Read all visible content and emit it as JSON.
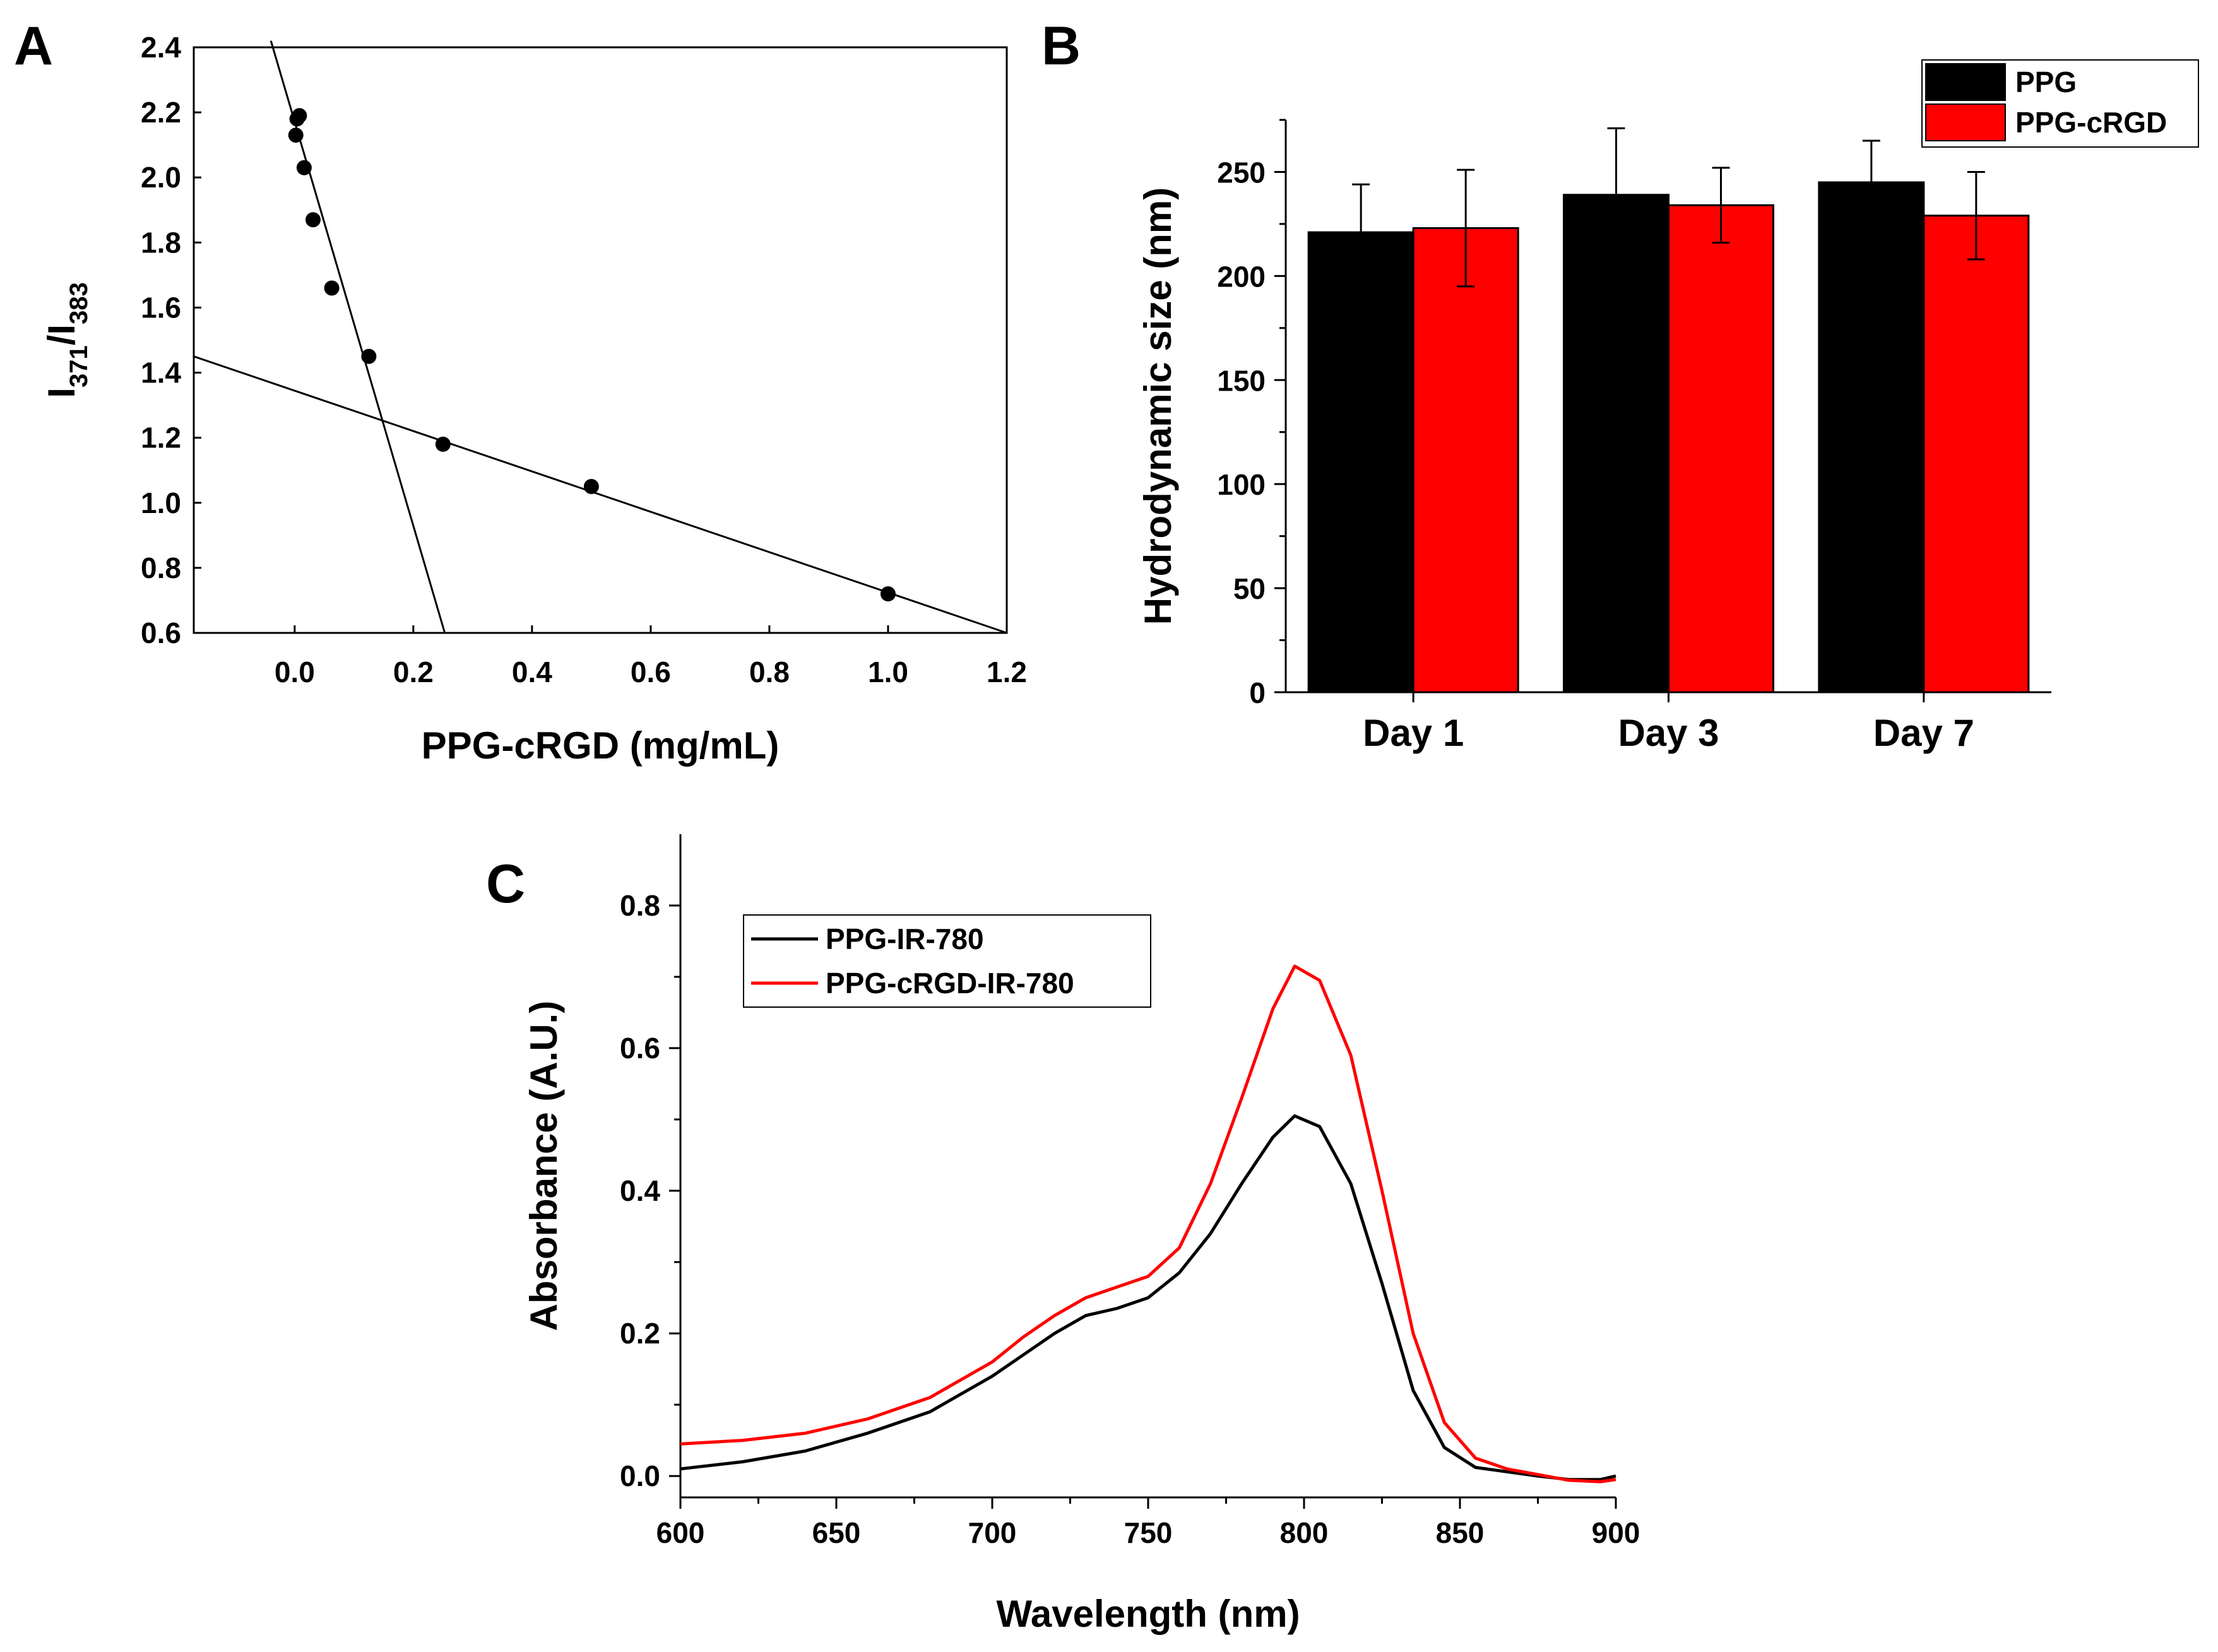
{
  "figure": {
    "panel_labels": [
      "A",
      "B",
      "C"
    ]
  },
  "chart_data": [
    {
      "panel": "A",
      "type": "scatter",
      "xlabel": "PPG-cRGD (mg/mL)",
      "ylabel": {
        "base": "I",
        "sub1": "371",
        "sep": "/I",
        "sub2": "383"
      },
      "xlim": [
        -0.17,
        1.2
      ],
      "ylim": [
        0.6,
        2.4
      ],
      "xticks": [
        "0.0",
        "0.2",
        "0.4",
        "0.6",
        "0.8",
        "1.0",
        "1.2"
      ],
      "xtick_values": [
        0.0,
        0.2,
        0.4,
        0.6,
        0.8,
        1.0,
        1.2
      ],
      "yticks": [
        "0.6",
        "0.8",
        "1.0",
        "1.2",
        "1.4",
        "1.6",
        "1.8",
        "2.0",
        "2.2",
        "2.4"
      ],
      "ytick_values": [
        0.6,
        0.8,
        1.0,
        1.2,
        1.4,
        1.6,
        1.8,
        2.0,
        2.2,
        2.4
      ],
      "points": [
        {
          "x": 0.004,
          "y": 2.18
        },
        {
          "x": 0.008,
          "y": 2.19
        },
        {
          "x": 0.002,
          "y": 2.13
        },
        {
          "x": 0.016,
          "y": 2.03
        },
        {
          "x": 0.031,
          "y": 1.87
        },
        {
          "x": 0.0625,
          "y": 1.66
        },
        {
          "x": 0.125,
          "y": 1.45
        },
        {
          "x": 0.25,
          "y": 1.18
        },
        {
          "x": 0.5,
          "y": 1.05
        },
        {
          "x": 1.0,
          "y": 0.72
        }
      ],
      "fit_lines": [
        {
          "name": "steep",
          "from": [
            -0.04,
            2.42
          ],
          "to": [
            0.253,
            0.6
          ]
        },
        {
          "name": "shallow",
          "from": [
            -0.17,
            1.45
          ],
          "to": [
            1.2,
            0.6
          ]
        }
      ]
    },
    {
      "panel": "B",
      "type": "bar",
      "ylabel": "Hydrodynamic size (nm)",
      "categories": [
        "Day 1",
        "Day 3",
        "Day 7"
      ],
      "series": [
        {
          "name": "PPG",
          "color": "#000000",
          "values": [
            221,
            239,
            245
          ],
          "errors": [
            23,
            32,
            20
          ]
        },
        {
          "name": "PPG-cRGD",
          "color": "#ff0000",
          "values": [
            223,
            234,
            229
          ],
          "errors": [
            28,
            18,
            21
          ]
        }
      ],
      "ylim": [
        0,
        275
      ],
      "yticks": [
        "0",
        "50",
        "100",
        "150",
        "200",
        "250"
      ],
      "ytick_values": [
        0,
        50,
        100,
        150,
        200,
        250
      ],
      "legend": "top-right"
    },
    {
      "panel": "C",
      "type": "line",
      "xlabel": "Wavelength (nm)",
      "ylabel": "Absorbance (A.U.)",
      "xlim": [
        600,
        900
      ],
      "ylim": [
        -0.03,
        0.9
      ],
      "xticks": [
        "600",
        "650",
        "700",
        "750",
        "800",
        "850",
        "900"
      ],
      "xtick_values": [
        600,
        650,
        700,
        750,
        800,
        850,
        900
      ],
      "yticks": [
        "0.0",
        "0.2",
        "0.4",
        "0.6",
        "0.8"
      ],
      "ytick_values": [
        0.0,
        0.2,
        0.4,
        0.6,
        0.8
      ],
      "x": [
        600,
        620,
        640,
        660,
        680,
        700,
        710,
        720,
        730,
        740,
        750,
        760,
        770,
        780,
        790,
        797,
        805,
        815,
        825,
        835,
        845,
        855,
        865,
        875,
        885,
        895,
        900
      ],
      "series": [
        {
          "name": "PPG-IR-780",
          "color": "#000000",
          "values": [
            0.01,
            0.02,
            0.035,
            0.06,
            0.09,
            0.14,
            0.17,
            0.2,
            0.225,
            0.235,
            0.25,
            0.285,
            0.34,
            0.41,
            0.475,
            0.505,
            0.49,
            0.41,
            0.27,
            0.12,
            0.04,
            0.012,
            0.006,
            0.0,
            -0.005,
            -0.005,
            0.0
          ]
        },
        {
          "name": "PPG-cRGD-IR-780",
          "color": "#ff0000",
          "values": [
            0.045,
            0.05,
            0.06,
            0.08,
            0.11,
            0.16,
            0.195,
            0.225,
            0.25,
            0.265,
            0.28,
            0.32,
            0.41,
            0.53,
            0.655,
            0.715,
            0.695,
            0.59,
            0.4,
            0.2,
            0.075,
            0.025,
            0.01,
            0.002,
            -0.006,
            -0.008,
            -0.005
          ]
        }
      ],
      "legend": "top-left"
    }
  ]
}
